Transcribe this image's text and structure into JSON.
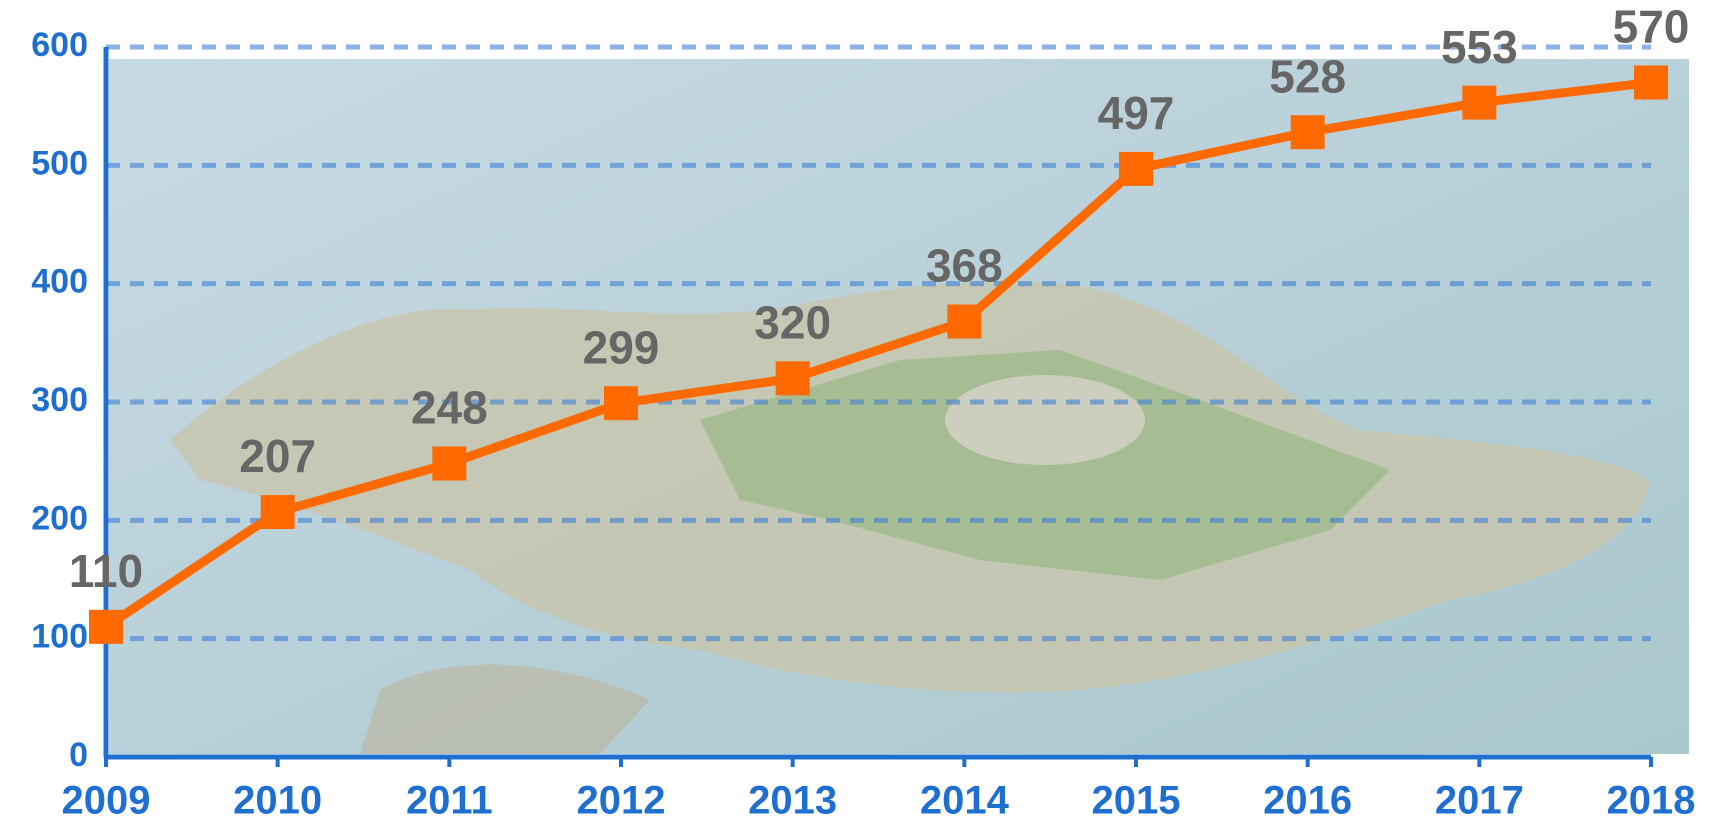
{
  "chart_data": {
    "type": "line",
    "categories": [
      "2009",
      "2010",
      "2011",
      "2012",
      "2013",
      "2014",
      "2015",
      "2016",
      "2017",
      "2018"
    ],
    "values": [
      110,
      207,
      248,
      299,
      320,
      368,
      497,
      528,
      553,
      570
    ],
    "color": "#ff6a00",
    "ylim": [
      0,
      600
    ],
    "yticks": [
      0,
      100,
      200,
      300,
      400,
      500,
      600
    ],
    "grid": true
  }
}
